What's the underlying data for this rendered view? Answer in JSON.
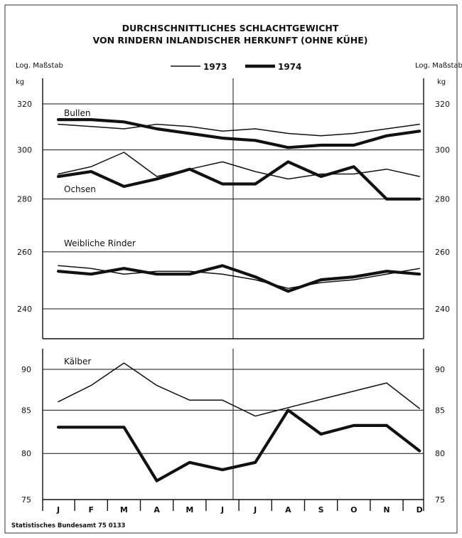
{
  "title_line1": "DURCHSCHNITTLICHES SCHLACHTGEWICHT",
  "title_line2": "VON RINDERN INLANDISCHER HERKUNFT (OHNE KÜHE)",
  "scale_note_left": "Log. Maßstab",
  "scale_note_right": "Log. Maßstab",
  "unit_left": "kg",
  "unit_right": "kg",
  "source": "Statistisches Bundesamt 75 0133",
  "colors": {
    "ink": "#111111"
  },
  "chart_data": [
    {
      "type": "line",
      "scale": "log",
      "x": [
        "J",
        "F",
        "M",
        "A",
        "M",
        "J",
        "J",
        "A",
        "S",
        "O",
        "N",
        "D"
      ],
      "ylim": [
        232,
        330
      ],
      "yticks": [
        240,
        260,
        280,
        300,
        320
      ],
      "legend": {
        "position": "top",
        "entries": [
          {
            "label": "1973",
            "style": "thin"
          },
          {
            "label": "1974",
            "style": "thick"
          }
        ]
      },
      "groups": [
        {
          "name": "Bullen",
          "series": [
            {
              "name": "1973",
              "values": [
                311,
                310,
                309,
                311,
                310,
                308,
                309,
                307,
                306,
                307,
                309,
                311
              ]
            },
            {
              "name": "1974",
              "values": [
                313,
                313,
                312,
                309,
                307,
                305,
                304,
                301,
                302,
                302,
                306,
                308
              ]
            }
          ]
        },
        {
          "name": "Ochsen",
          "series": [
            {
              "name": "1973",
              "values": [
                290,
                293,
                299,
                289,
                292,
                295,
                291,
                288,
                290,
                290,
                292,
                289
              ]
            },
            {
              "name": "1974",
              "values": [
                289,
                291,
                285,
                288,
                292,
                286,
                286,
                295,
                289,
                293,
                280,
                280
              ]
            }
          ]
        },
        {
          "name": "Weibliche Rinder",
          "series": [
            {
              "name": "1973",
              "values": [
                255,
                254,
                252,
                253,
                253,
                252,
                250,
                247,
                249,
                250,
                252,
                254
              ]
            },
            {
              "name": "1974",
              "values": [
                253,
                252,
                254,
                252,
                252,
                255,
                251,
                246,
                250,
                251,
                253,
                252
              ]
            }
          ]
        }
      ]
    },
    {
      "type": "line",
      "scale": "log",
      "name": "Kälber",
      "x": [
        "J",
        "F",
        "M",
        "A",
        "M",
        "J",
        "J",
        "A",
        "S",
        "O",
        "N",
        "D"
      ],
      "ylim": [
        75,
        92
      ],
      "yticks": [
        75,
        80,
        85,
        90
      ],
      "series": [
        {
          "name": "1973",
          "values": [
            86,
            88,
            90.8,
            88,
            86.2,
            86.2,
            84.3,
            85.3,
            86.3,
            87.3,
            88.3,
            85.2
          ]
        },
        {
          "name": "1974",
          "values": [
            83,
            83,
            83,
            77,
            79,
            78.2,
            79,
            85,
            82.2,
            83.2,
            83.2,
            80.3
          ]
        }
      ]
    }
  ]
}
